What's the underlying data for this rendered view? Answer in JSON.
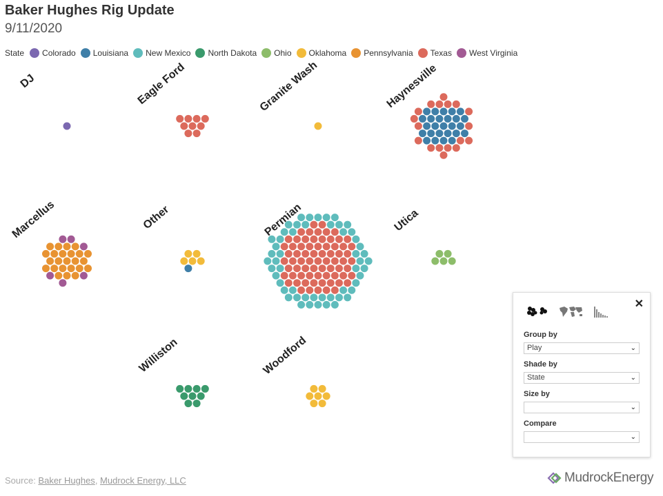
{
  "header": {
    "title": "Baker Hughes Rig Update",
    "date": "9/11/2020"
  },
  "legend": {
    "title": "State",
    "items": [
      {
        "label": "Colorado",
        "color": "#7b68b0"
      },
      {
        "label": "Louisiana",
        "color": "#3f7fa8"
      },
      {
        "label": "New Mexico",
        "color": "#5fbcbc"
      },
      {
        "label": "North Dakota",
        "color": "#3a9a6c"
      },
      {
        "label": "Ohio",
        "color": "#8dbd6a"
      },
      {
        "label": "Oklahoma",
        "color": "#f2bb3a"
      },
      {
        "label": "Pennsylvania",
        "color": "#e89332"
      },
      {
        "label": "Texas",
        "color": "#dc6a5c"
      },
      {
        "label": "West Virginia",
        "color": "#a25a94"
      }
    ]
  },
  "chart_data": {
    "type": "scatter",
    "description_type": "packed bubble (one dot per rig) grouped by play, shaded by state",
    "groups": [
      {
        "play": "DJ",
        "counts": {
          "Colorado": 1
        }
      },
      {
        "play": "Eagle Ford",
        "counts": {
          "Texas": 9
        }
      },
      {
        "play": "Granite Wash",
        "counts": {
          "Oklahoma": 1
        }
      },
      {
        "play": "Haynesville",
        "counts": {
          "Louisiana": 26,
          "Texas": 18
        }
      },
      {
        "play": "Marcellus",
        "counts": {
          "Pennsylvania": 24,
          "West Virginia": 6
        }
      },
      {
        "play": "Other",
        "counts": {
          "Louisiana": 1,
          "Oklahoma": 5
        }
      },
      {
        "play": "Permian",
        "counts": {
          "New Mexico": 53,
          "Texas": 71
        }
      },
      {
        "play": "Utica",
        "counts": {
          "Ohio": 5
        }
      },
      {
        "play": "Williston",
        "counts": {
          "North Dakota": 9
        }
      },
      {
        "play": "Woodford",
        "counts": {
          "Oklahoma": 7
        }
      }
    ]
  },
  "controls": {
    "close_symbol": "✕",
    "group_by": {
      "label": "Group by",
      "value": "Play"
    },
    "shade_by": {
      "label": "Shade by",
      "value": "State"
    },
    "size_by": {
      "label": "Size by",
      "value": ""
    },
    "compare": {
      "label": "Compare",
      "value": ""
    },
    "chevron": "⌄"
  },
  "footer": {
    "source_prefix": "Source: ",
    "source_link1": "Baker Hughes",
    "source_sep": ", ",
    "source_link2": "Mudrock Energy, LLC",
    "brand": "MudrockEnergy"
  }
}
